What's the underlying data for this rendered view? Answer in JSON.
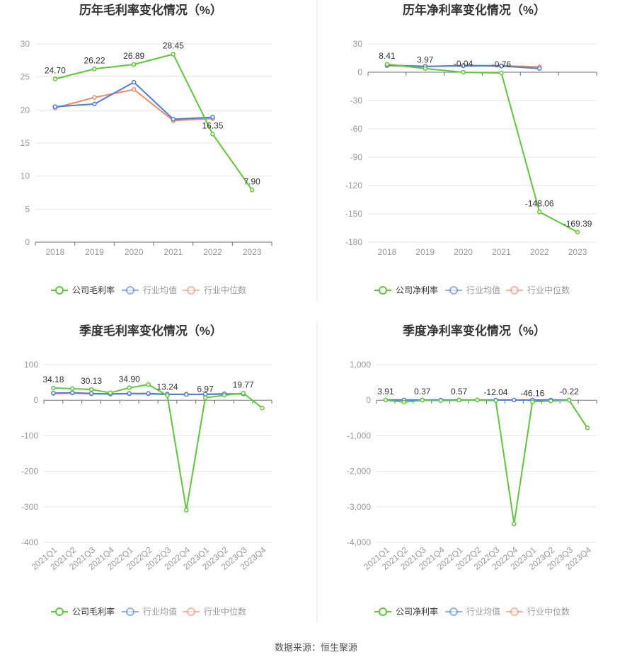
{
  "colors": {
    "company": "#5cc936",
    "industry_avg": "#4a7fdc",
    "industry_median": "#f08a68",
    "axis": "#999999",
    "grid": "#e6e6e6",
    "divider": "#eeeeee"
  },
  "legend": {
    "gross_company": "公司毛利率",
    "net_company": "公司净利率",
    "industry_avg": "行业均值",
    "industry_median": "行业中位数"
  },
  "footer": {
    "source": "数据来源：恒生聚源"
  },
  "chart_data": [
    {
      "type": "line",
      "title": "历年毛利率变化情况（%）",
      "categories": [
        "2018",
        "2019",
        "2020",
        "2021",
        "2022",
        "2023"
      ],
      "ylim": [
        0,
        30
      ],
      "yticks": [
        0,
        5,
        10,
        15,
        20,
        25,
        30
      ],
      "grid": true,
      "legend_position": "bottom",
      "series": [
        {
          "key": "company",
          "name": "公司毛利率",
          "values": [
            24.7,
            26.22,
            26.89,
            28.45,
            16.35,
            7.9
          ],
          "labels": [
            "24.70",
            "26.22",
            "26.89",
            "28.45",
            "16.35",
            "7.90"
          ]
        },
        {
          "key": "industry_avg",
          "name": "行业均值",
          "values": [
            20.5,
            20.9,
            24.2,
            18.6,
            18.9,
            null
          ]
        },
        {
          "key": "industry_median",
          "name": "行业中位数",
          "values": [
            20.3,
            21.9,
            23.1,
            18.4,
            18.7,
            null
          ]
        }
      ]
    },
    {
      "type": "line",
      "title": "历年净利率变化情况（%）",
      "categories": [
        "2018",
        "2019",
        "2020",
        "2021",
        "2022",
        "2023"
      ],
      "ylim": [
        -180,
        30
      ],
      "yticks": [
        -180,
        -150,
        -120,
        -90,
        -60,
        -30,
        0,
        30
      ],
      "grid": true,
      "legend_position": "bottom",
      "series": [
        {
          "key": "company",
          "name": "公司净利率",
          "values": [
            8.41,
            3.97,
            -0.04,
            -0.76,
            -148.06,
            -169.39
          ],
          "labels": [
            "8.41",
            "3.97",
            "-0.04",
            "-0.76",
            "-148.06",
            "-169.39"
          ]
        },
        {
          "key": "industry_avg",
          "name": "行业均值",
          "values": [
            7.5,
            6.2,
            6.8,
            6.5,
            4.0,
            null
          ]
        },
        {
          "key": "industry_median",
          "name": "行业中位数",
          "values": [
            6.8,
            5.9,
            7.2,
            6.9,
            5.6,
            null
          ]
        }
      ]
    },
    {
      "type": "line",
      "title": "季度毛利率变化情况（%）",
      "categories": [
        "2021Q1",
        "2021Q2",
        "2021Q3",
        "2021Q4",
        "2022Q1",
        "2022Q2",
        "2022Q3",
        "2022Q4",
        "2023Q1",
        "2023Q2",
        "2023Q3",
        "2023Q4"
      ],
      "ylim": [
        -400,
        100
      ],
      "yticks": [
        -400,
        -300,
        -200,
        -100,
        0,
        100
      ],
      "grid": true,
      "legend_position": "bottom",
      "series": [
        {
          "key": "company",
          "name": "公司毛利率",
          "values": [
            34.18,
            32.5,
            30.13,
            21.0,
            34.9,
            44.0,
            13.24,
            -309.0,
            6.97,
            14.0,
            19.77,
            -22.0
          ],
          "labels": [
            "34.18",
            "",
            "30.13",
            "",
            "34.90",
            "",
            "13.24",
            "",
            "6.97",
            "",
            "19.77",
            ""
          ]
        },
        {
          "key": "industry_avg",
          "name": "行业均值",
          "values": [
            20,
            21,
            19,
            18,
            19,
            19,
            17,
            16,
            17,
            18,
            18,
            null
          ]
        },
        {
          "key": "industry_median",
          "name": "行业中位数",
          "values": [
            19,
            20,
            18,
            17,
            18,
            18,
            16,
            17,
            16,
            17,
            18,
            null
          ]
        }
      ]
    },
    {
      "type": "line",
      "title": "季度净利率变化情况（%）",
      "categories": [
        "2021Q1",
        "2021Q2",
        "2021Q3",
        "2021Q4",
        "2022Q1",
        "2022Q2",
        "2022Q3",
        "2022Q4",
        "2023Q1",
        "2023Q2",
        "2023Q3",
        "2023Q4"
      ],
      "ylim": [
        -4000,
        1000
      ],
      "yticks": [
        -4000,
        -3000,
        -2000,
        -1000,
        0,
        1000
      ],
      "ytick_labels": [
        "-4,000",
        "-3,000",
        "-2,000",
        "-1,000",
        "0",
        "1,000"
      ],
      "grid": true,
      "legend_position": "bottom",
      "series": [
        {
          "key": "company",
          "name": "公司净利率",
          "values": [
            3.91,
            -55,
            0.37,
            -10,
            0.57,
            3,
            -12.04,
            -3480,
            -46.16,
            -20,
            -0.22,
            -780
          ],
          "labels": [
            "3.91",
            "",
            "0.37",
            "",
            "0.57",
            "",
            "-12.04",
            "",
            "-46.16",
            "",
            "-0.22",
            ""
          ]
        },
        {
          "key": "industry_avg",
          "name": "行业均值",
          "values": [
            5,
            6,
            4,
            5,
            6,
            5,
            4,
            3,
            4,
            5,
            4,
            null
          ]
        },
        {
          "key": "industry_median",
          "name": "行业中位数",
          "values": [
            4,
            5,
            5,
            4,
            5,
            4,
            5,
            4,
            3,
            4,
            5,
            null
          ]
        }
      ]
    }
  ]
}
